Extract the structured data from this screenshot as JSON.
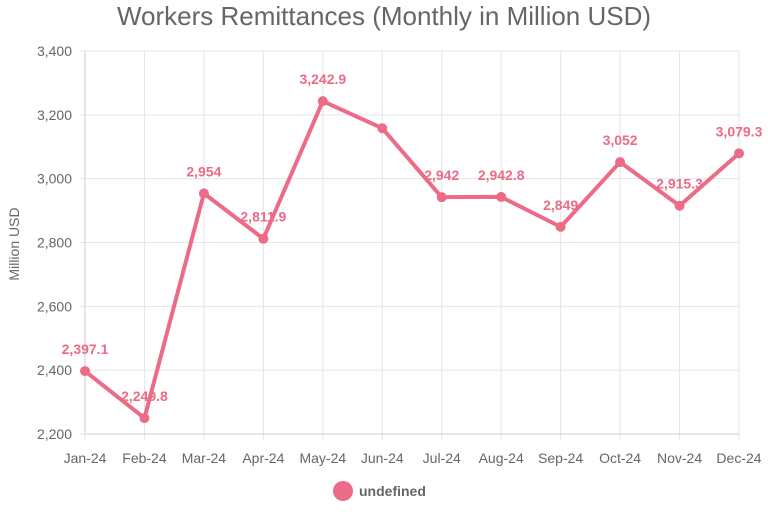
{
  "colors": {
    "series": "#ec6b86",
    "grid": "#e5e5e5",
    "axis": "#cccccc",
    "text": "#666666"
  },
  "chart_data": {
    "type": "line",
    "title": "Workers Remittances (Monthly in Million USD)",
    "xlabel": "",
    "ylabel": "Million USD",
    "categories": [
      "Jan-24",
      "Feb-24",
      "Mar-24",
      "Apr-24",
      "May-24",
      "Jun-24",
      "Jul-24",
      "Aug-24",
      "Sep-24",
      "Oct-24",
      "Nov-24",
      "Dec-24"
    ],
    "series": [
      {
        "name": "undefined",
        "values": [
          2397.1,
          2249.8,
          2954,
          2811.9,
          3242.9,
          3158,
          2942,
          2942.8,
          2849,
          3052,
          2915.3,
          3079.3
        ],
        "labels": [
          "2,397.1",
          "2,249.8",
          "2,954",
          "2,811.9",
          "3,242.9",
          "",
          "2,942",
          "2,942.8",
          "2,849",
          "3,052",
          "2,915.3",
          "3,079.3"
        ]
      }
    ],
    "yticks": [
      2200,
      2400,
      2600,
      2800,
      3000,
      3200,
      3400
    ],
    "ytick_labels": [
      "2,200",
      "2,400",
      "2,600",
      "2,800",
      "3,000",
      "3,200",
      "3,400"
    ],
    "ylim": [
      2200,
      3400
    ],
    "grid": true,
    "legend_position": "bottom-center"
  }
}
